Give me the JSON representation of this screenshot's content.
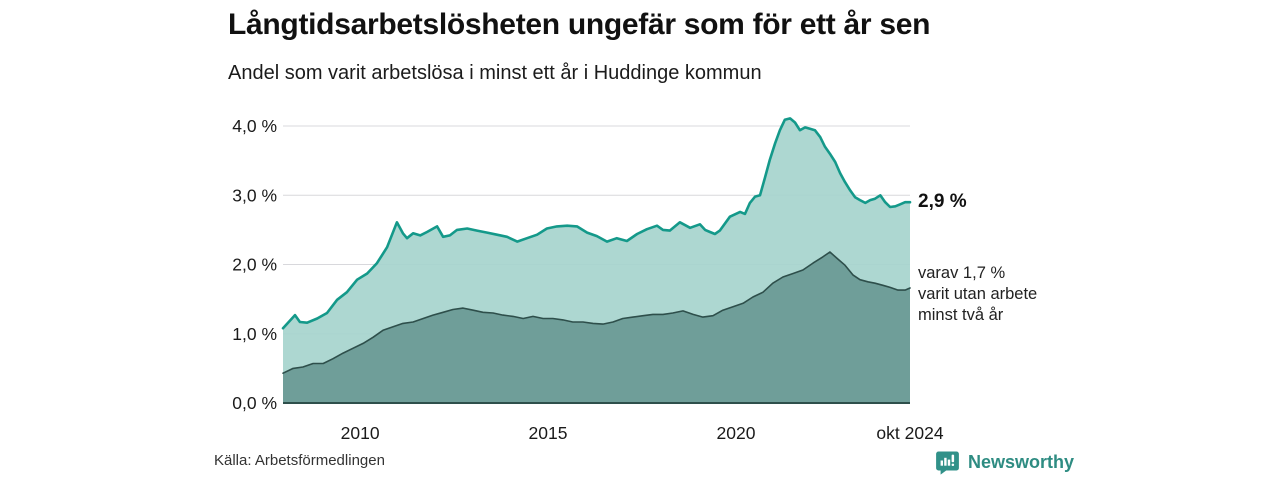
{
  "header": {
    "title": "Långtidsarbetslösheten ungefär som för ett år sen",
    "subtitle": "Andel som varit arbetslösa i minst ett år i Huddinge kommun"
  },
  "annotations": {
    "end_value": "2,9 %",
    "part_text": "varav 1,7 %\nvarit utan arbete\nminst två år"
  },
  "footer": {
    "source": "Källa: Arbetsförmedlingen",
    "brand": "Newsworthy"
  },
  "chart_data": {
    "type": "area",
    "title": "Långtidsarbetsl&ouml;sheten ungefär som för ett år sen",
    "xlabel": "",
    "ylabel": "",
    "xlim": [
      2007.95,
      2024.63
    ],
    "ylim": [
      0,
      4.23
    ],
    "grid": "horizontal",
    "legend_position": "none",
    "colors": {
      "line_total": "#14998a",
      "fill_total": "#a6d4cd",
      "line_part": "#2e4f4b",
      "fill_part": "#6f9e99",
      "grid": "#d8d8dc",
      "axis": "#2e4f4b",
      "tick_text": "#1a1a1a",
      "brand": "#2e8c82"
    },
    "yticks": [
      {
        "v": 0,
        "label": "0,0 %"
      },
      {
        "v": 1,
        "label": "1,0 %"
      },
      {
        "v": 2,
        "label": "2,0 %"
      },
      {
        "v": 3,
        "label": "3,0 %"
      },
      {
        "v": 4,
        "label": "4,0 %"
      }
    ],
    "xticks": [
      {
        "v": 2010,
        "label": "2010"
      },
      {
        "v": 2015,
        "label": "2015"
      },
      {
        "v": 2020,
        "label": "2020"
      },
      {
        "v": 2024.63,
        "label": "okt 2024"
      }
    ],
    "series": [
      {
        "id": "unemployed_min_1yr",
        "end_label": "2,9 %",
        "points": [
          [
            2007.95,
            1.08
          ],
          [
            2008.27,
            1.27
          ],
          [
            2008.4,
            1.17
          ],
          [
            2008.59,
            1.16
          ],
          [
            2008.86,
            1.22
          ],
          [
            2009.12,
            1.3
          ],
          [
            2009.39,
            1.49
          ],
          [
            2009.65,
            1.6
          ],
          [
            2009.92,
            1.78
          ],
          [
            2010.19,
            1.87
          ],
          [
            2010.45,
            2.02
          ],
          [
            2010.72,
            2.25
          ],
          [
            2010.98,
            2.61
          ],
          [
            2011.14,
            2.45
          ],
          [
            2011.25,
            2.38
          ],
          [
            2011.41,
            2.45
          ],
          [
            2011.6,
            2.42
          ],
          [
            2011.78,
            2.47
          ],
          [
            2012.05,
            2.55
          ],
          [
            2012.21,
            2.4
          ],
          [
            2012.39,
            2.42
          ],
          [
            2012.58,
            2.5
          ],
          [
            2012.85,
            2.52
          ],
          [
            2013.11,
            2.49
          ],
          [
            2013.38,
            2.46
          ],
          [
            2013.64,
            2.43
          ],
          [
            2013.91,
            2.4
          ],
          [
            2014.18,
            2.33
          ],
          [
            2014.44,
            2.38
          ],
          [
            2014.71,
            2.43
          ],
          [
            2014.97,
            2.52
          ],
          [
            2015.24,
            2.55
          ],
          [
            2015.51,
            2.56
          ],
          [
            2015.77,
            2.55
          ],
          [
            2016.04,
            2.46
          ],
          [
            2016.3,
            2.41
          ],
          [
            2016.57,
            2.33
          ],
          [
            2016.83,
            2.38
          ],
          [
            2017.1,
            2.34
          ],
          [
            2017.37,
            2.44
          ],
          [
            2017.63,
            2.51
          ],
          [
            2017.9,
            2.56
          ],
          [
            2018.06,
            2.5
          ],
          [
            2018.24,
            2.49
          ],
          [
            2018.51,
            2.61
          ],
          [
            2018.78,
            2.53
          ],
          [
            2019.04,
            2.58
          ],
          [
            2019.18,
            2.5
          ],
          [
            2019.31,
            2.47
          ],
          [
            2019.44,
            2.44
          ],
          [
            2019.57,
            2.49
          ],
          [
            2019.84,
            2.69
          ],
          [
            2020.11,
            2.76
          ],
          [
            2020.24,
            2.73
          ],
          [
            2020.37,
            2.89
          ],
          [
            2020.51,
            2.98
          ],
          [
            2020.64,
            3.0
          ],
          [
            2020.77,
            3.25
          ],
          [
            2020.9,
            3.51
          ],
          [
            2021.04,
            3.75
          ],
          [
            2021.17,
            3.94
          ],
          [
            2021.3,
            4.09
          ],
          [
            2021.44,
            4.11
          ],
          [
            2021.57,
            4.05
          ],
          [
            2021.7,
            3.94
          ],
          [
            2021.84,
            3.98
          ],
          [
            2021.97,
            3.96
          ],
          [
            2022.1,
            3.94
          ],
          [
            2022.24,
            3.84
          ],
          [
            2022.37,
            3.7
          ],
          [
            2022.5,
            3.6
          ],
          [
            2022.64,
            3.48
          ],
          [
            2022.77,
            3.32
          ],
          [
            2022.9,
            3.19
          ],
          [
            2023.04,
            3.07
          ],
          [
            2023.17,
            2.97
          ],
          [
            2023.3,
            2.93
          ],
          [
            2023.44,
            2.89
          ],
          [
            2023.57,
            2.93
          ],
          [
            2023.7,
            2.95
          ],
          [
            2023.84,
            3.0
          ],
          [
            2023.97,
            2.9
          ],
          [
            2024.1,
            2.83
          ],
          [
            2024.24,
            2.84
          ],
          [
            2024.37,
            2.87
          ],
          [
            2024.5,
            2.9
          ],
          [
            2024.63,
            2.9
          ]
        ]
      },
      {
        "id": "unemployed_min_2yr",
        "end_label": "1,7 %",
        "points": [
          [
            2007.95,
            0.43
          ],
          [
            2008.22,
            0.5
          ],
          [
            2008.48,
            0.52
          ],
          [
            2008.75,
            0.57
          ],
          [
            2009.02,
            0.57
          ],
          [
            2009.28,
            0.64
          ],
          [
            2009.55,
            0.72
          ],
          [
            2009.81,
            0.79
          ],
          [
            2010.08,
            0.86
          ],
          [
            2010.35,
            0.95
          ],
          [
            2010.61,
            1.05
          ],
          [
            2010.88,
            1.1
          ],
          [
            2011.14,
            1.15
          ],
          [
            2011.41,
            1.17
          ],
          [
            2011.68,
            1.22
          ],
          [
            2011.94,
            1.27
          ],
          [
            2012.21,
            1.31
          ],
          [
            2012.47,
            1.35
          ],
          [
            2012.74,
            1.37
          ],
          [
            2013.01,
            1.34
          ],
          [
            2013.27,
            1.31
          ],
          [
            2013.54,
            1.3
          ],
          [
            2013.8,
            1.27
          ],
          [
            2014.07,
            1.25
          ],
          [
            2014.34,
            1.22
          ],
          [
            2014.6,
            1.25
          ],
          [
            2014.87,
            1.22
          ],
          [
            2015.13,
            1.22
          ],
          [
            2015.4,
            1.2
          ],
          [
            2015.66,
            1.17
          ],
          [
            2015.93,
            1.17
          ],
          [
            2016.2,
            1.15
          ],
          [
            2016.46,
            1.14
          ],
          [
            2016.73,
            1.17
          ],
          [
            2016.99,
            1.22
          ],
          [
            2017.26,
            1.24
          ],
          [
            2017.53,
            1.26
          ],
          [
            2017.79,
            1.28
          ],
          [
            2018.06,
            1.28
          ],
          [
            2018.32,
            1.3
          ],
          [
            2018.59,
            1.33
          ],
          [
            2018.86,
            1.28
          ],
          [
            2019.12,
            1.24
          ],
          [
            2019.39,
            1.26
          ],
          [
            2019.65,
            1.34
          ],
          [
            2019.92,
            1.39
          ],
          [
            2020.19,
            1.44
          ],
          [
            2020.45,
            1.53
          ],
          [
            2020.72,
            1.6
          ],
          [
            2020.98,
            1.73
          ],
          [
            2021.25,
            1.82
          ],
          [
            2021.52,
            1.87
          ],
          [
            2021.78,
            1.92
          ],
          [
            2022.05,
            2.02
          ],
          [
            2022.31,
            2.11
          ],
          [
            2022.5,
            2.18
          ],
          [
            2022.71,
            2.08
          ],
          [
            2022.9,
            1.99
          ],
          [
            2023.11,
            1.85
          ],
          [
            2023.3,
            1.78
          ],
          [
            2023.51,
            1.75
          ],
          [
            2023.7,
            1.73
          ],
          [
            2023.91,
            1.7
          ],
          [
            2024.1,
            1.67
          ],
          [
            2024.31,
            1.63
          ],
          [
            2024.5,
            1.63
          ],
          [
            2024.63,
            1.66
          ]
        ]
      }
    ]
  }
}
